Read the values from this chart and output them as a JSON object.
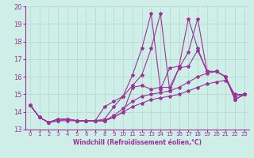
{
  "xlabel": "Windchill (Refroidissement éolien,°C)",
  "ylabel": "",
  "xlim": [
    -0.5,
    23.5
  ],
  "ylim": [
    13,
    20
  ],
  "xticks": [
    0,
    1,
    2,
    3,
    4,
    5,
    6,
    7,
    8,
    9,
    10,
    11,
    12,
    13,
    14,
    15,
    16,
    17,
    18,
    19,
    20,
    21,
    22,
    23
  ],
  "yticks": [
    13,
    14,
    15,
    16,
    17,
    18,
    19,
    20
  ],
  "bg_color": "#d0eee8",
  "line_color": "#993399",
  "lines": [
    [
      14.4,
      13.7,
      13.4,
      13.6,
      13.6,
      13.5,
      13.5,
      13.5,
      13.5,
      13.7,
      14.0,
      15.4,
      15.5,
      15.3,
      15.4,
      15.4,
      16.5,
      17.4,
      19.3,
      16.3,
      16.3,
      16.0,
      14.7,
      15.0
    ],
    [
      14.4,
      13.7,
      13.4,
      13.6,
      13.6,
      13.5,
      13.5,
      13.5,
      13.6,
      14.3,
      14.9,
      16.1,
      17.6,
      19.6,
      15.3,
      16.5,
      16.6,
      19.3,
      17.6,
      16.3,
      16.3,
      16.0,
      14.7,
      15.0
    ],
    [
      14.4,
      13.7,
      13.4,
      13.6,
      13.6,
      13.5,
      13.5,
      13.5,
      14.3,
      14.6,
      14.9,
      15.5,
      16.1,
      17.6,
      19.6,
      15.2,
      16.5,
      16.6,
      17.5,
      16.3,
      16.3,
      16.0,
      14.7,
      15.0
    ],
    [
      14.4,
      13.7,
      13.4,
      13.5,
      13.6,
      13.5,
      13.5,
      13.5,
      13.5,
      13.8,
      14.2,
      14.6,
      14.9,
      15.0,
      15.1,
      15.2,
      15.4,
      15.7,
      16.0,
      16.2,
      16.3,
      16.0,
      14.9,
      15.0
    ],
    [
      14.4,
      13.7,
      13.4,
      13.5,
      13.5,
      13.5,
      13.5,
      13.5,
      13.5,
      13.7,
      14.0,
      14.3,
      14.5,
      14.7,
      14.8,
      14.9,
      15.0,
      15.2,
      15.4,
      15.6,
      15.7,
      15.8,
      15.0,
      15.0
    ]
  ],
  "grid_color": "#b0d8cc",
  "font_color": "#993399",
  "tick_fontsize": 5,
  "xlabel_fontsize": 5.5,
  "linewidth": 0.8,
  "markersize": 3
}
